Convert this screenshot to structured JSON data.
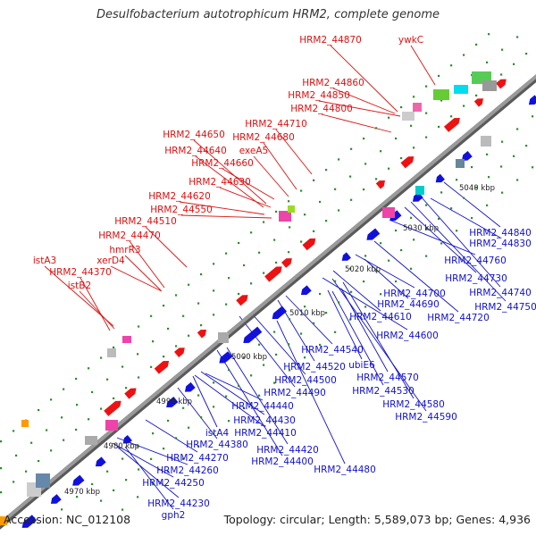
{
  "title": "Desulfobacterium autotrophicum HRM2, complete genome",
  "footer": {
    "accession": "Accession: NC_012108",
    "summary": "Topology: circular; Length: 5,589,073 bp; Genes: 4,936"
  },
  "colors": {
    "forward_label": "#dd1111",
    "reverse_label": "#1111cc",
    "backbone": "#8c8c8c",
    "tick_dots": "#2e8b2e"
  },
  "scale_ticks": [
    "4970 kbp",
    "4980 kbp",
    "4990 kbp",
    "5000 kbp",
    "5010 kbp",
    "5020 kbp",
    "5030 kbp",
    "5040 kbp"
  ],
  "forward_labels": [
    "HRM2_44870",
    "ywkC",
    "HRM2_44860",
    "HRM2_44850",
    "HRM2_44800",
    "HRM2_44710",
    "HRM2_44680",
    "HRM2_44650",
    "exeA5",
    "HRM2_44640",
    "HRM2_44660",
    "HRM2_44630",
    "HRM2_44620",
    "HRM2_44550",
    "HRM2_44510",
    "HRM2_44470",
    "hmrR3",
    "istA3",
    "xerD4",
    "HRM2_44370",
    "istB2"
  ],
  "reverse_labels": [
    "HRM2_44840",
    "HRM2_44830",
    "HRM2_44760",
    "HRM2_44730",
    "HRM2_44740",
    "HRM2_44750",
    "HRM2_44700",
    "HRM2_44690",
    "HRM2_44720",
    "HRM2_44610",
    "HRM2_44600",
    "HRM2_44540",
    "HRM2_44520",
    "HRM2_44500",
    "HRM2_44490",
    "ubiE6",
    "HRM2_44570",
    "HRM2_44530",
    "HRM2_44580",
    "HRM2_44590",
    "HRM2_44440",
    "HRM2_44430",
    "HRM2_44410",
    "istA4",
    "HRM2_44380",
    "HRM2_44420",
    "HRM2_44400",
    "HRM2_44480",
    "HRM2_44270",
    "HRM2_44260",
    "HRM2_44250",
    "HRM2_44230",
    "gph2"
  ]
}
